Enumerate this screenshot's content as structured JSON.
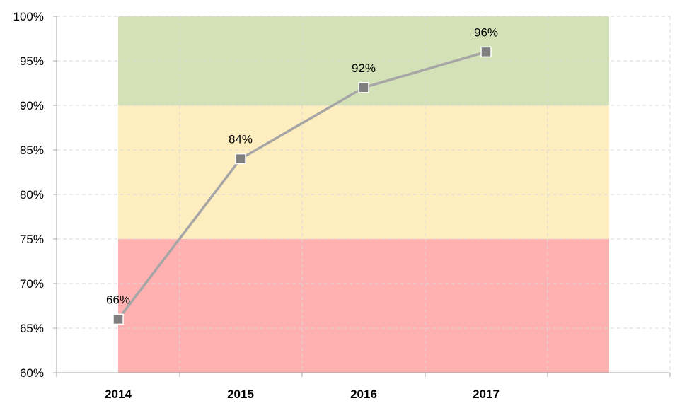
{
  "chart_data": {
    "type": "line",
    "categories": [
      "2014",
      "2015",
      "2016",
      "2017"
    ],
    "series": [
      {
        "values": [
          66,
          84,
          92,
          96
        ],
        "labels": [
          "66%",
          "84%",
          "92%",
          "96%"
        ],
        "line_color": "#a6a6a6",
        "marker_color": "#7f7f7f"
      }
    ],
    "ylim": [
      60,
      100
    ],
    "y_ticks": [
      60,
      65,
      70,
      75,
      80,
      85,
      90,
      95,
      100
    ],
    "y_tick_labels": [
      "60%",
      "65%",
      "70%",
      "75%",
      "80%",
      "85%",
      "90%",
      "95%",
      "100%"
    ],
    "bands": [
      {
        "name": "red-zone",
        "from": 60,
        "to": 75,
        "color": "#ffb0b0"
      },
      {
        "name": "yellow-zone",
        "from": 75,
        "to": 90,
        "color": "#fdedbf"
      },
      {
        "name": "green-zone",
        "from": 90,
        "to": 100,
        "color": "#d3e2b6"
      }
    ],
    "grid": true,
    "legend": "none"
  }
}
